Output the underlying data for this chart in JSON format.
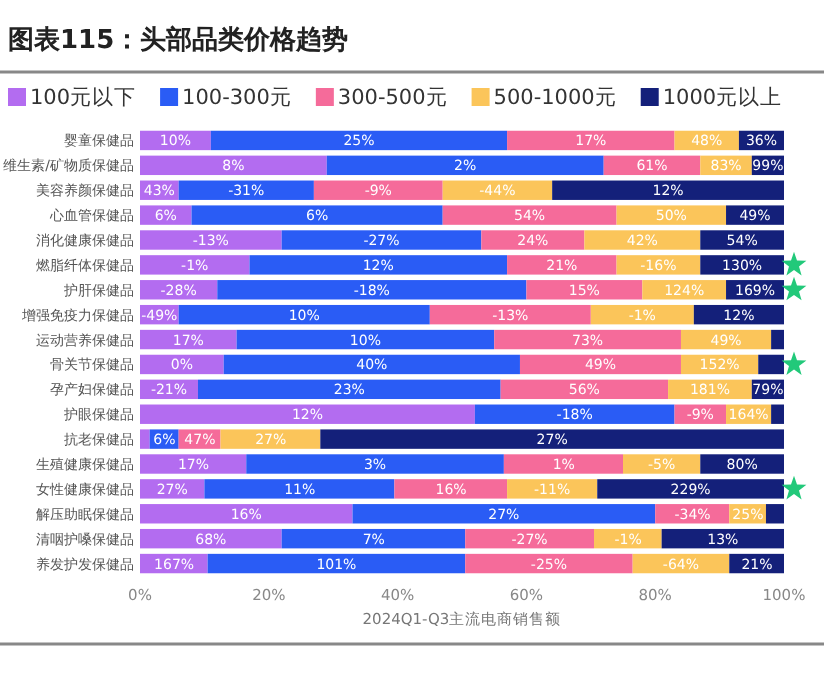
{
  "chart_data": {
    "type": "bar",
    "orientation": "horizontal",
    "stacked": true,
    "title": "图表115：头部品类价格趋势",
    "xlabel": "2024Q1-Q3主流电商销售额",
    "legend": "top",
    "grid": false,
    "categories": [
      "婴童保健品",
      "维生素/矿物质保健品",
      "美容养颜保健品",
      "心血管保健品",
      "消化健康保健品",
      "燃脂纤体保健品",
      "护肝保健品",
      "增强免疫力保健品",
      "运动营养保健品",
      "骨关节保健品",
      "孕产妇保健品",
      "护眼保健品",
      "抗老保健品",
      "生殖健康保健品",
      "女性健康保健品",
      "解压助眠保健品",
      "清咽护嗓保健品",
      "养发护发保健品"
    ],
    "xlim": [
      0,
      100
    ],
    "xticks": [
      {
        "value": 0,
        "label": "0%"
      },
      {
        "value": 20,
        "label": "20%"
      },
      {
        "value": 40,
        "label": "40%"
      },
      {
        "value": 60,
        "label": "60%"
      },
      {
        "value": 80,
        "label": "80%"
      },
      {
        "value": 100,
        "label": "100%"
      }
    ],
    "series": [
      {
        "name": "100元以下",
        "color": "#b36cf0",
        "values": [
          11,
          29,
          6,
          8,
          22,
          17,
          12,
          6,
          15,
          13,
          9,
          52,
          1.5,
          16.5,
          10,
          33,
          22,
          10.5
        ]
      },
      {
        "name": "100-300元",
        "color": "#2a5cf5",
        "values": [
          46,
          43,
          21,
          39,
          31,
          40,
          48,
          39,
          40,
          46,
          47,
          31,
          4.5,
          40,
          29.5,
          47,
          28.5,
          40
        ]
      },
      {
        "name": "300-500元",
        "color": "#f56b9a",
        "values": [
          26,
          15,
          20,
          27,
          16,
          17,
          18,
          25,
          29,
          25,
          26,
          8,
          6.5,
          18.5,
          17.5,
          11.5,
          20,
          26
        ]
      },
      {
        "name": "500-1000元",
        "color": "#fbc55a",
        "values": [
          10,
          8,
          17,
          17,
          18,
          13,
          13,
          16,
          14,
          12,
          13,
          7,
          15.5,
          12,
          14,
          5.7,
          10.5,
          15
        ]
      },
      {
        "name": "1000元以上",
        "color": "#14207a",
        "values": [
          7,
          5,
          36,
          9,
          13,
          13,
          9,
          14,
          2,
          4,
          5,
          2,
          72,
          13,
          29,
          2.8,
          19,
          8.5
        ]
      }
    ],
    "annotations": [
      {
        "text": "10%",
        "x": 5.5,
        "y": "婴童保健品"
      },
      {
        "text": "25%",
        "x": 34,
        "y": "婴童保健品"
      },
      {
        "text": "17%",
        "x": 70,
        "y": "婴童保健品"
      },
      {
        "text": "48%",
        "x": 88,
        "y": "婴童保健品"
      },
      {
        "text": "36%",
        "x": 96.5,
        "y": "婴童保健品"
      },
      {
        "text": "8%",
        "x": 14.5,
        "y": "维生素/矿物质保健品"
      },
      {
        "text": "2%",
        "x": 50.5,
        "y": "维生素/矿物质保健品"
      },
      {
        "text": "61%",
        "x": 79.5,
        "y": "维生素/矿物质保健品"
      },
      {
        "text": "83%",
        "x": 91,
        "y": "维生素/矿物质保健品"
      },
      {
        "text": "99%",
        "x": 97.5,
        "y": "维生素/矿物质保健品"
      },
      {
        "text": "43%",
        "x": 3,
        "y": "美容养颜保健品"
      },
      {
        "text": "-31%",
        "x": 16.5,
        "y": "美容养颜保健品"
      },
      {
        "text": "-9%",
        "x": 37,
        "y": "美容养颜保健品"
      },
      {
        "text": "-44%",
        "x": 55.5,
        "y": "美容养颜保健品"
      },
      {
        "text": "12%",
        "x": 82,
        "y": "美容养颜保健品"
      },
      {
        "text": "6%",
        "x": 4,
        "y": "心血管保健品"
      },
      {
        "text": "6%",
        "x": 27.5,
        "y": "心血管保健品"
      },
      {
        "text": "54%",
        "x": 60.5,
        "y": "心血管保健品"
      },
      {
        "text": "50%",
        "x": 82.5,
        "y": "心血管保健品"
      },
      {
        "text": "49%",
        "x": 95.5,
        "y": "心血管保健品"
      },
      {
        "text": "-13%",
        "x": 11,
        "y": "消化健康保健品"
      },
      {
        "text": "-27%",
        "x": 37.5,
        "y": "消化健康保健品"
      },
      {
        "text": "24%",
        "x": 61,
        "y": "消化健康保健品"
      },
      {
        "text": "42%",
        "x": 78,
        "y": "消化健康保健品"
      },
      {
        "text": "54%",
        "x": 93.5,
        "y": "消化健康保健品"
      },
      {
        "text": "-1%",
        "x": 8.5,
        "y": "燃脂纤体保健品"
      },
      {
        "text": "12%",
        "x": 37,
        "y": "燃脂纤体保健品"
      },
      {
        "text": "21%",
        "x": 65.5,
        "y": "燃脂纤体保健品"
      },
      {
        "text": "-16%",
        "x": 80.5,
        "y": "燃脂纤体保健品"
      },
      {
        "text": "130%",
        "x": 93.5,
        "y": "燃脂纤体保健品"
      },
      {
        "text": "-28%",
        "x": 6,
        "y": "护肝保健品"
      },
      {
        "text": "-18%",
        "x": 36,
        "y": "护肝保健品"
      },
      {
        "text": "15%",
        "x": 69,
        "y": "护肝保健品"
      },
      {
        "text": "124%",
        "x": 84.5,
        "y": "护肝保健品"
      },
      {
        "text": "169%",
        "x": 95.5,
        "y": "护肝保健品"
      },
      {
        "text": "-49%",
        "x": 3,
        "y": "增强免疫力保健品"
      },
      {
        "text": "10%",
        "x": 25.5,
        "y": "增强免疫力保健品"
      },
      {
        "text": "-13%",
        "x": 57.5,
        "y": "增强免疫力保健品"
      },
      {
        "text": "-1%",
        "x": 78,
        "y": "增强免疫力保健品"
      },
      {
        "text": "12%",
        "x": 93,
        "y": "增强免疫力保健品"
      },
      {
        "text": "17%",
        "x": 7.5,
        "y": "运动营养保健品"
      },
      {
        "text": "10%",
        "x": 35,
        "y": "运动营养保健品"
      },
      {
        "text": "73%",
        "x": 69.5,
        "y": "运动营养保健品"
      },
      {
        "text": "49%",
        "x": 91,
        "y": "运动营养保健品"
      },
      {
        "text": "0%",
        "x": 6.5,
        "y": "骨关节保健品"
      },
      {
        "text": "40%",
        "x": 36,
        "y": "骨关节保健品"
      },
      {
        "text": "49%",
        "x": 71.5,
        "y": "骨关节保健品"
      },
      {
        "text": "152%",
        "x": 90,
        "y": "骨关节保健品"
      },
      {
        "text": "-21%",
        "x": 4.5,
        "y": "孕产妇保健品"
      },
      {
        "text": "23%",
        "x": 32.5,
        "y": "孕产妇保健品"
      },
      {
        "text": "56%",
        "x": 69,
        "y": "孕产妇保健品"
      },
      {
        "text": "181%",
        "x": 88.5,
        "y": "孕产妇保健品"
      },
      {
        "text": "79%",
        "x": 97.5,
        "y": "孕产妇保健品"
      },
      {
        "text": "12%",
        "x": 26,
        "y": "护眼保健品"
      },
      {
        "text": "-18%",
        "x": 67.5,
        "y": "护眼保健品"
      },
      {
        "text": "-9%",
        "x": 87,
        "y": "护眼保健品"
      },
      {
        "text": "164%",
        "x": 94.5,
        "y": "护眼保健品"
      },
      {
        "text": "6%",
        "x": 3.8,
        "y": "抗老保健品"
      },
      {
        "text": "47%",
        "x": 9.3,
        "y": "抗老保健品"
      },
      {
        "text": "27%",
        "x": 20.3,
        "y": "抗老保健品"
      },
      {
        "text": "27%",
        "x": 64,
        "y": "抗老保健品"
      },
      {
        "text": "17%",
        "x": 8.3,
        "y": "生殖健康保健品"
      },
      {
        "text": "3%",
        "x": 36.5,
        "y": "生殖健康保健品"
      },
      {
        "text": "1%",
        "x": 65.8,
        "y": "生殖健康保健品"
      },
      {
        "text": "-5%",
        "x": 81,
        "y": "生殖健康保健品"
      },
      {
        "text": "80%",
        "x": 93.5,
        "y": "生殖健康保健品"
      },
      {
        "text": "27%",
        "x": 5,
        "y": "女性健康保健品"
      },
      {
        "text": "11%",
        "x": 24.8,
        "y": "女性健康保健品"
      },
      {
        "text": "16%",
        "x": 48.3,
        "y": "女性健康保健品"
      },
      {
        "text": "-11%",
        "x": 64,
        "y": "女性健康保健品"
      },
      {
        "text": "229%",
        "x": 85.5,
        "y": "女性健康保健品"
      },
      {
        "text": "16%",
        "x": 16.5,
        "y": "解压助眠保健品"
      },
      {
        "text": "27%",
        "x": 56.5,
        "y": "解压助眠保健品"
      },
      {
        "text": "-34%",
        "x": 85.8,
        "y": "解压助眠保健品"
      },
      {
        "text": "25%",
        "x": 94.4,
        "y": "解压助眠保健品"
      },
      {
        "text": "68%",
        "x": 11,
        "y": "清咽护嗓保健品"
      },
      {
        "text": "7%",
        "x": 36.3,
        "y": "清咽护嗓保健品"
      },
      {
        "text": "-27%",
        "x": 60.5,
        "y": "清咽护嗓保健品"
      },
      {
        "text": "-1%",
        "x": 75.8,
        "y": "清咽护嗓保健品"
      },
      {
        "text": "13%",
        "x": 90.5,
        "y": "清咽护嗓保健品"
      },
      {
        "text": "167%",
        "x": 5.3,
        "y": "养发护发保健品"
      },
      {
        "text": "101%",
        "x": 30.5,
        "y": "养发护发保健品"
      },
      {
        "text": "-25%",
        "x": 63.5,
        "y": "养发护发保健品"
      },
      {
        "text": "-64%",
        "x": 84,
        "y": "养发护发保健品"
      },
      {
        "text": "21%",
        "x": 95.8,
        "y": "养发护发保健品"
      }
    ]
  }
}
